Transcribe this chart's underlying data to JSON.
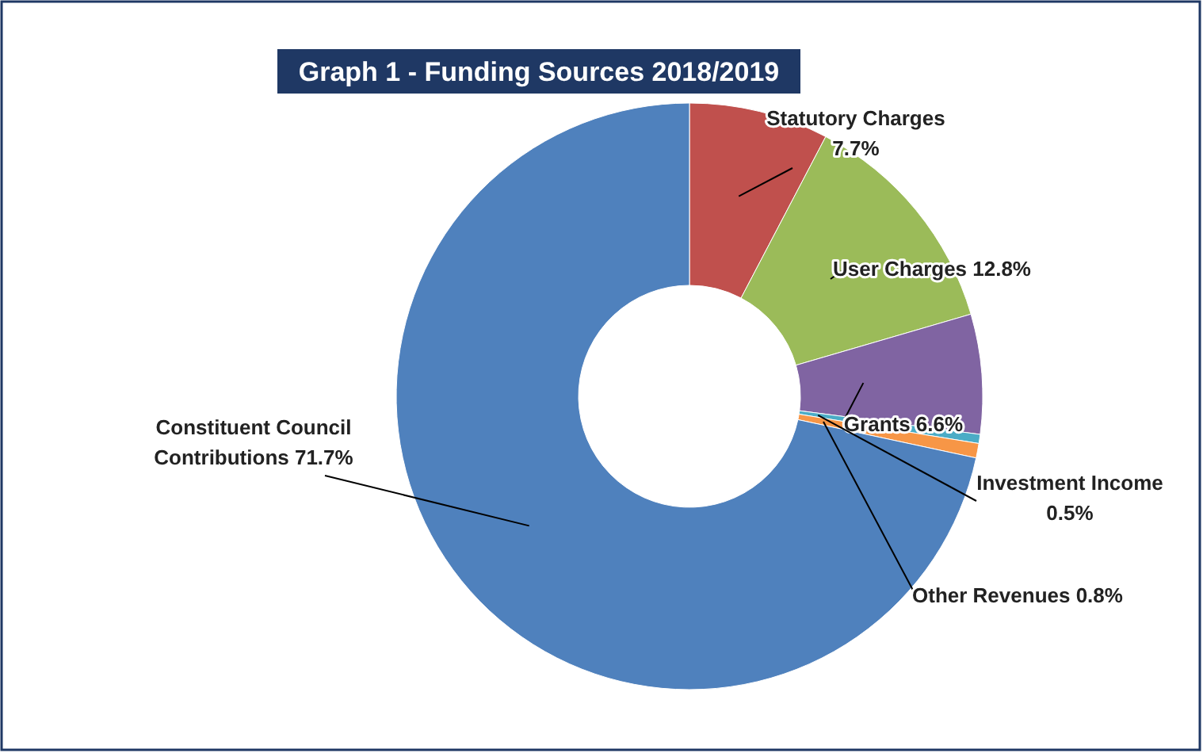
{
  "chart_data": {
    "type": "donut",
    "title": "Graph 1 - Funding Sources 2018/2019",
    "categories": [
      "Statutory Charges",
      "User Charges",
      "Grants",
      "Investment Income",
      "Other Revenues",
      "Constituent Council Contributions"
    ],
    "values": [
      7.7,
      12.8,
      6.6,
      0.5,
      0.8,
      71.7
    ],
    "value_labels": [
      "7.7%",
      "12.8%",
      "6.6%",
      "0.5%",
      "0.8%",
      "71.7%"
    ],
    "colors": [
      "#c0504d",
      "#9bbb59",
      "#8064a2",
      "#4bacc6",
      "#f79646",
      "#4f81bd"
    ],
    "data_labels": true
  }
}
